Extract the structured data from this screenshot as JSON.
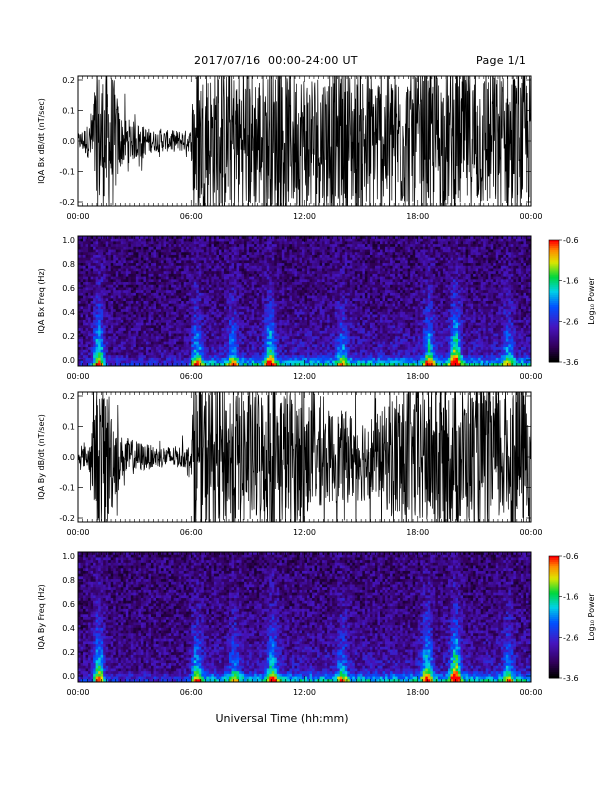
{
  "header": {
    "title": "2017/07/16  00:00-24:00 UT",
    "page": "Page 1/1"
  },
  "xlabel": "Universal Time (hh:mm)",
  "colorbar": {
    "label": "Log₁₀ Power",
    "ticks": [
      "-0.6",
      "-1.6",
      "-2.6",
      "-3.6"
    ]
  },
  "chart_data": [
    {
      "type": "line",
      "ylabel": "IQA Bx dB/dt (nT/sec)",
      "x_ticks": [
        "00:00",
        "06:00",
        "12:00",
        "18:00",
        "00:00"
      ],
      "y_ticks": [
        "0.2",
        "0.1",
        "0.0",
        "-0.1",
        "-0.2"
      ],
      "xlim_hours": [
        0,
        24
      ],
      "ylim": [
        -0.2,
        0.2
      ],
      "amplitude_envelope": [
        {
          "hour": 0.0,
          "amp": 0.02
        },
        {
          "hour": 0.6,
          "amp": 0.05
        },
        {
          "hour": 1.0,
          "amp": 0.2
        },
        {
          "hour": 1.8,
          "amp": 0.2
        },
        {
          "hour": 2.3,
          "amp": 0.07
        },
        {
          "hour": 4.0,
          "amp": 0.03
        },
        {
          "hour": 6.0,
          "amp": 0.03
        },
        {
          "hour": 6.1,
          "amp": 0.2
        },
        {
          "hour": 24.0,
          "amp": 0.2
        }
      ]
    },
    {
      "type": "heatmap",
      "ylabel": "IQA Bx Freq (Hz)",
      "x_ticks": [
        "00:00",
        "06:00",
        "12:00",
        "18:00",
        "00:00"
      ],
      "y_ticks": [
        "1.0",
        "0.8",
        "0.6",
        "0.4",
        "0.2",
        "0.0"
      ],
      "ylim": [
        0,
        1.0
      ],
      "zlim": [
        -3.6,
        -0.6
      ],
      "activity_bursts": [
        {
          "hour": 1.1,
          "intensity": 0.9
        },
        {
          "hour": 6.3,
          "intensity": 0.6
        },
        {
          "hour": 8.2,
          "intensity": 0.5
        },
        {
          "hour": 10.2,
          "intensity": 0.8
        },
        {
          "hour": 14.0,
          "intensity": 0.5
        },
        {
          "hour": 18.6,
          "intensity": 0.7
        },
        {
          "hour": 20.0,
          "intensity": 1.0
        },
        {
          "hour": 22.8,
          "intensity": 0.5
        }
      ]
    },
    {
      "type": "line",
      "ylabel": "IQA By dB/dt (nT/sec)",
      "x_ticks": [
        "00:00",
        "06:00",
        "12:00",
        "18:00",
        "00:00"
      ],
      "y_ticks": [
        "0.2",
        "0.1",
        "0.0",
        "-0.1",
        "-0.2"
      ],
      "xlim_hours": [
        0,
        24
      ],
      "ylim": [
        -0.2,
        0.2
      ],
      "amplitude_envelope": [
        {
          "hour": 0.0,
          "amp": 0.015
        },
        {
          "hour": 0.6,
          "amp": 0.04
        },
        {
          "hour": 1.0,
          "amp": 0.2
        },
        {
          "hour": 1.6,
          "amp": 0.2
        },
        {
          "hour": 2.2,
          "amp": 0.06
        },
        {
          "hour": 4.0,
          "amp": 0.03
        },
        {
          "hour": 6.0,
          "amp": 0.03
        },
        {
          "hour": 6.1,
          "amp": 0.2
        },
        {
          "hour": 11.0,
          "amp": 0.2
        },
        {
          "hour": 13.0,
          "amp": 0.13
        },
        {
          "hour": 16.0,
          "amp": 0.12
        },
        {
          "hour": 17.0,
          "amp": 0.2
        },
        {
          "hour": 24.0,
          "amp": 0.2
        }
      ]
    },
    {
      "type": "heatmap",
      "ylabel": "IQA By Freq (Hz)",
      "x_ticks": [
        "00:00",
        "06:00",
        "12:00",
        "18:00",
        "00:00"
      ],
      "y_ticks": [
        "1.0",
        "0.8",
        "0.6",
        "0.4",
        "0.2",
        "0.0"
      ],
      "ylim": [
        0,
        1.0
      ],
      "zlim": [
        -3.6,
        -0.6
      ],
      "activity_bursts": [
        {
          "hour": 1.1,
          "intensity": 0.9
        },
        {
          "hour": 6.3,
          "intensity": 0.6
        },
        {
          "hour": 8.3,
          "intensity": 0.5
        },
        {
          "hour": 10.3,
          "intensity": 0.7
        },
        {
          "hour": 14.0,
          "intensity": 0.5
        },
        {
          "hour": 18.5,
          "intensity": 0.8
        },
        {
          "hour": 20.0,
          "intensity": 1.0
        },
        {
          "hour": 22.8,
          "intensity": 0.5
        }
      ]
    }
  ]
}
